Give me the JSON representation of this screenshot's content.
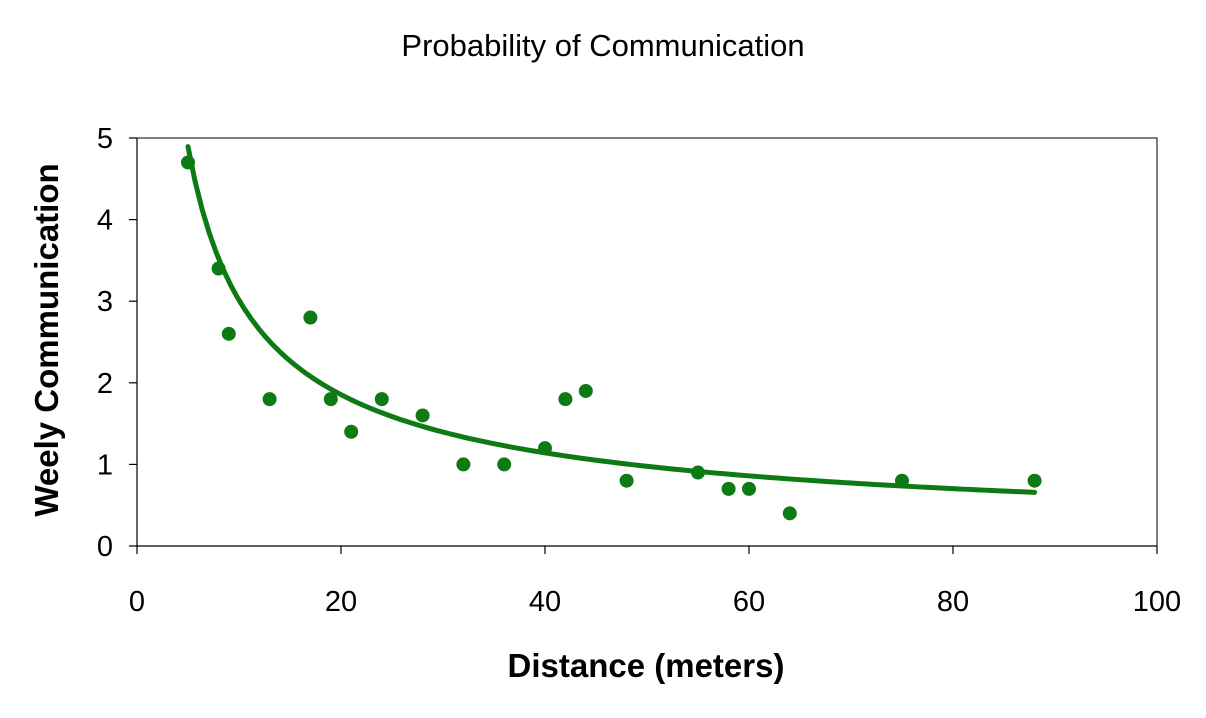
{
  "chart_data": {
    "type": "scatter",
    "title": "Probability of Communication",
    "xlabel": "Distance (meters)",
    "ylabel": "Weely Communication",
    "xlim": [
      0,
      100
    ],
    "ylim": [
      0,
      5
    ],
    "xticks": [
      "0",
      "20",
      "40",
      "60",
      "80",
      "100"
    ],
    "yticks": [
      "0",
      "1",
      "2",
      "3",
      "4",
      "5"
    ],
    "grid": false,
    "legend": "none",
    "color": "#0e7a13",
    "points": [
      {
        "x": 5,
        "y": 4.7
      },
      {
        "x": 8,
        "y": 3.4
      },
      {
        "x": 9,
        "y": 2.6
      },
      {
        "x": 13,
        "y": 1.8
      },
      {
        "x": 17,
        "y": 2.8
      },
      {
        "x": 19,
        "y": 1.8
      },
      {
        "x": 21,
        "y": 1.4
      },
      {
        "x": 24,
        "y": 1.8
      },
      {
        "x": 28,
        "y": 1.6
      },
      {
        "x": 32,
        "y": 1.0
      },
      {
        "x": 36,
        "y": 1.0
      },
      {
        "x": 40,
        "y": 1.2
      },
      {
        "x": 42,
        "y": 1.8
      },
      {
        "x": 44,
        "y": 1.9
      },
      {
        "x": 48,
        "y": 0.8
      },
      {
        "x": 55,
        "y": 0.9
      },
      {
        "x": 58,
        "y": 0.7
      },
      {
        "x": 60,
        "y": 0.7
      },
      {
        "x": 64,
        "y": 0.4
      },
      {
        "x": 75,
        "y": 0.8
      },
      {
        "x": 88,
        "y": 0.8
      }
    ],
    "trendline": {
      "type": "power",
      "coefficient": 15.1,
      "exponent": -0.7,
      "x_range": [
        5,
        88
      ]
    }
  }
}
